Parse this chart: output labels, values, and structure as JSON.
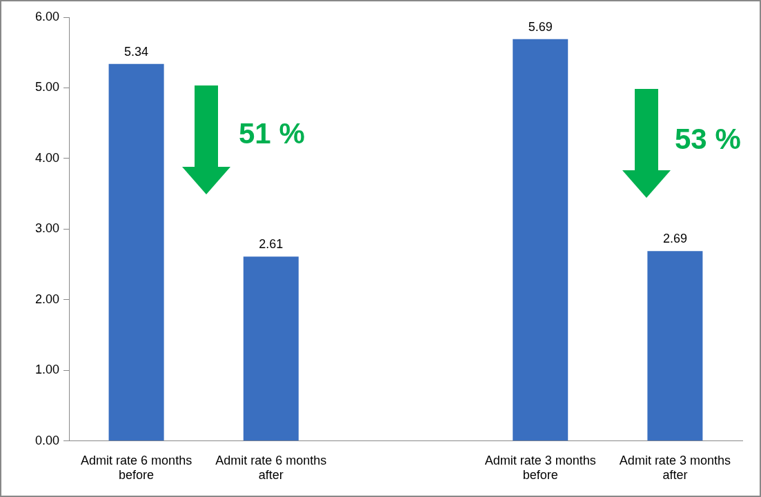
{
  "chart_data": {
    "type": "bar",
    "categories": [
      "Admit rate 6 months before",
      "Admit rate 6 months after",
      null,
      "Admit rate 3 months before",
      "Admit rate 3 months after"
    ],
    "values": [
      5.34,
      2.61,
      null,
      5.69,
      2.69
    ],
    "color": "#3a6fc0",
    "ylim": [
      0,
      6
    ],
    "yticks": [
      {
        "value": 0,
        "label": "0.00"
      },
      {
        "value": 1,
        "label": "1.00"
      },
      {
        "value": 2,
        "label": "2.00"
      },
      {
        "value": 3,
        "label": "3.00"
      },
      {
        "value": 4,
        "label": "4.00"
      },
      {
        "value": 5,
        "label": "5.00"
      },
      {
        "value": 6,
        "label": "6.00"
      }
    ],
    "grid": false,
    "legend": false,
    "data_labels": true,
    "annotations": [
      "51 %",
      "53 %"
    ]
  }
}
